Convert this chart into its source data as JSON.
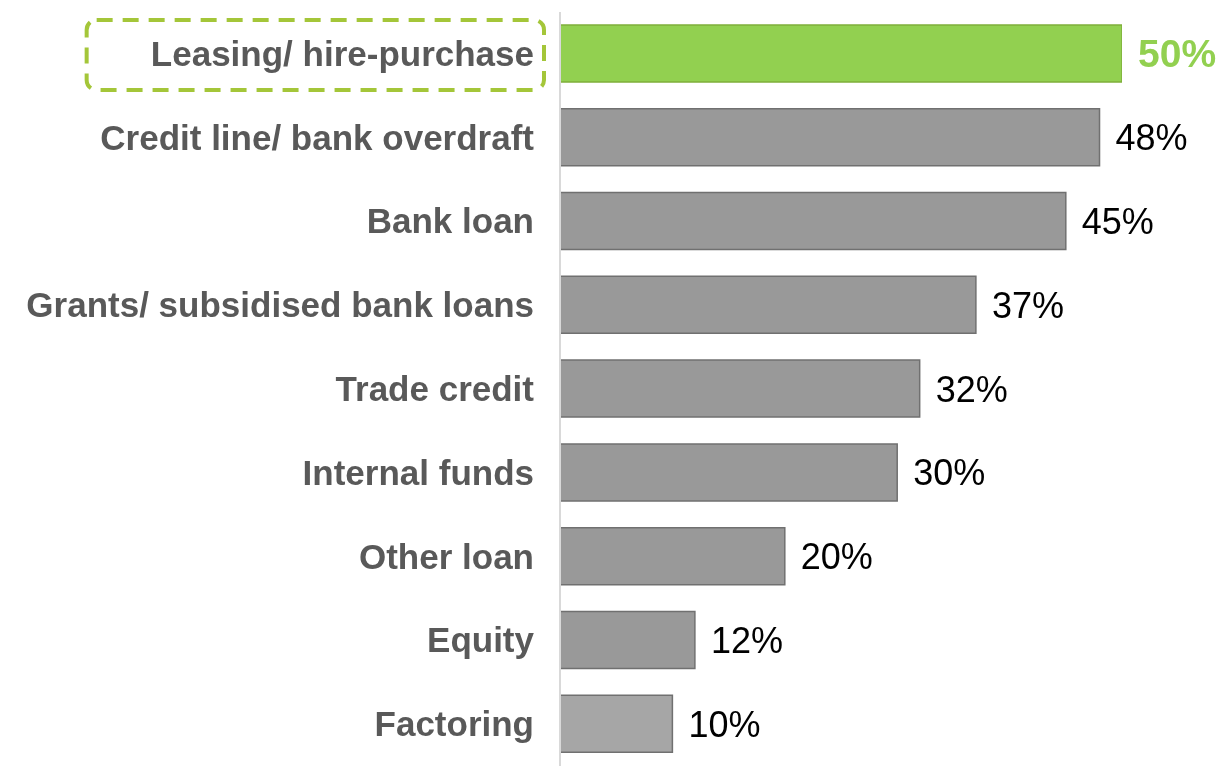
{
  "chart_data": {
    "type": "bar",
    "orientation": "horizontal",
    "categories": [
      "Leasing/ hire-purchase",
      "Credit line/ bank overdraft",
      "Bank loan",
      "Grants/ subsidised bank loans",
      "Trade credit",
      "Internal funds",
      "Other loan",
      "Equity",
      "Factoring"
    ],
    "values": [
      50,
      48,
      45,
      37,
      32,
      30,
      20,
      12,
      10
    ],
    "value_labels": [
      "50%",
      "48%",
      "45%",
      "37%",
      "32%",
      "30%",
      "20%",
      "12%",
      "10%"
    ],
    "colors": [
      "#92d050",
      "#999999",
      "#999999",
      "#999999",
      "#999999",
      "#999999",
      "#999999",
      "#999999",
      "#a6a6a6"
    ],
    "grid": false,
    "legend": false
  }
}
